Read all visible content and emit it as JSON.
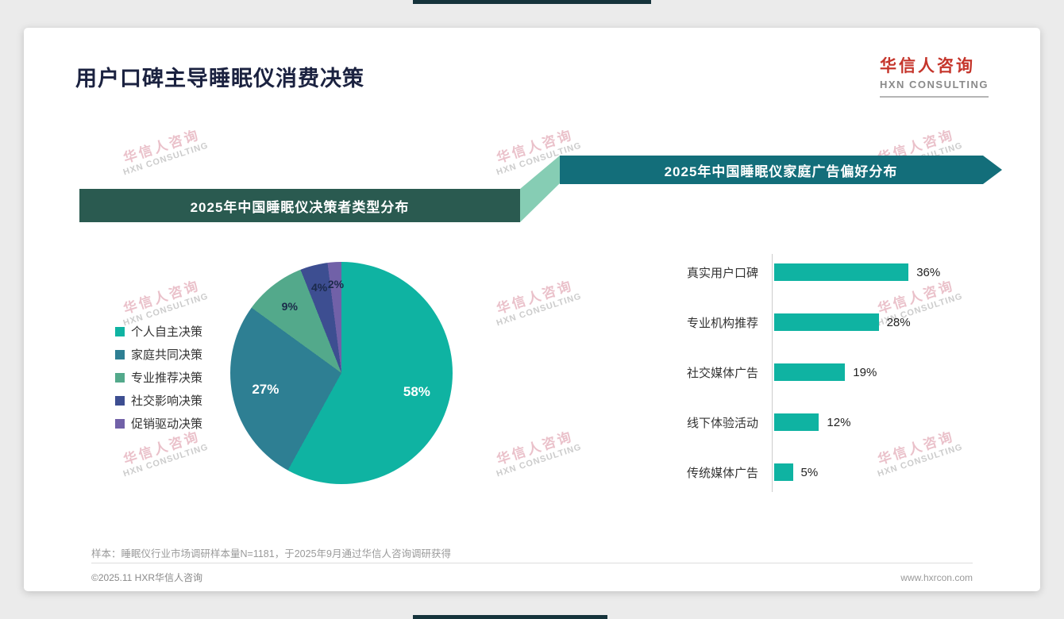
{
  "page": {
    "title": "用户口碑主导睡眠仪消费决策",
    "logo": {
      "cn": "华信人咨询",
      "en": "HXN CONSULTING"
    },
    "watermark": {
      "cn": "华信人咨询",
      "en": "HXN CONSULTING"
    },
    "footnote": "样本：睡眠仪行业市场调研样本量N=1181，于2025年9月通过华信人咨询调研获得",
    "copyright": "©2025.11 HXR华信人咨询",
    "website": "www.hxrcon.com"
  },
  "colors": {
    "banner_left": "#2a5a50",
    "banner_right": "#136e7a",
    "connector": "#86cdb4",
    "accent_red": "#c5352b",
    "bar_teal": "#0fb3a2"
  },
  "chart_data": [
    {
      "type": "pie",
      "title": "2025年中国睡眠仪决策者类型分布",
      "categories": [
        "个人自主决策",
        "家庭共同决策",
        "专业推荐决策",
        "社交影响决策",
        "促销驱动决策"
      ],
      "values": [
        58,
        27,
        9,
        4,
        2
      ],
      "value_suffix": "%",
      "colors": [
        "#0fb3a2",
        "#2e7f93",
        "#53a98b",
        "#3d4e91",
        "#7161a8"
      ],
      "legend_position": "left",
      "start_angle_deg": 0,
      "direction": "clockwise"
    },
    {
      "type": "bar",
      "title": "2025年中国睡眠仪家庭广告偏好分布",
      "orientation": "horizontal",
      "categories": [
        "真实用户口碑",
        "专业机构推荐",
        "社交媒体广告",
        "线下体验活动",
        "传统媒体广告"
      ],
      "values": [
        36,
        28,
        19,
        12,
        5
      ],
      "value_suffix": "%",
      "bar_color": "#0fb3a2",
      "xlim": [
        0,
        40
      ],
      "grid": false,
      "legend_position": "none"
    }
  ]
}
